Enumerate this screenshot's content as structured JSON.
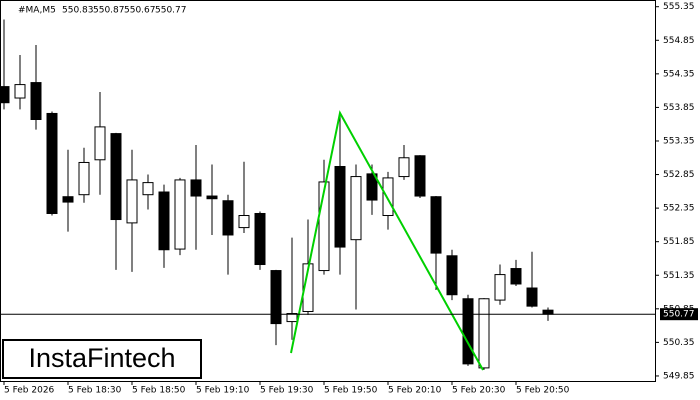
{
  "chart_data": {
    "type": "candlestick",
    "symbol": "#MA,M5",
    "categories": [
      "5 Feb 2026",
      null,
      null,
      null,
      "5 Feb 18:30",
      null,
      null,
      null,
      "5 Feb 18:50",
      null,
      null,
      null,
      "5 Feb 19:10",
      null,
      null,
      null,
      "5 Feb 19:30",
      null,
      null,
      null,
      "5 Feb 19:50",
      null,
      null,
      null,
      "5 Feb 20:10",
      null,
      null,
      null,
      "5 Feb 20:30",
      null,
      null,
      null,
      "5 Feb 20:50",
      null,
      null
    ],
    "open": [
      554.16,
      553.99,
      554.22,
      553.76,
      552.52,
      552.55,
      553.07,
      553.46,
      552.13,
      552.55,
      552.59,
      551.74,
      552.77,
      552.53,
      552.46,
      552.06,
      552.27,
      551.42,
      550.66,
      550.81,
      551.42,
      552.97,
      551.88,
      552.86,
      552.24,
      552.82,
      553.13,
      552.52,
      551.64,
      551.0,
      549.97,
      550.98,
      551.45,
      551.16,
      550.83
    ],
    "high": [
      555.16,
      554.63,
      554.78,
      553.79,
      553.22,
      553.25,
      554.08,
      553.47,
      553.22,
      552.85,
      552.7,
      552.8,
      553.29,
      553.0,
      552.55,
      553.04,
      552.3,
      551.43,
      551.91,
      552.18,
      553.07,
      553.77,
      553.0,
      553.0,
      552.89,
      553.29,
      553.14,
      552.53,
      551.73,
      551.06,
      551.01,
      551.51,
      551.58,
      551.7,
      550.87
    ],
    "low": [
      553.82,
      553.82,
      553.52,
      552.24,
      552.0,
      552.43,
      552.55,
      551.43,
      551.4,
      552.33,
      551.46,
      551.65,
      551.73,
      551.95,
      551.36,
      551.98,
      551.43,
      550.31,
      550.39,
      550.76,
      551.36,
      551.36,
      550.84,
      552.25,
      552.03,
      552.77,
      552.5,
      551.13,
      550.98,
      550.0,
      549.94,
      550.91,
      551.19,
      550.87,
      550.67
    ],
    "close": [
      553.92,
      554.19,
      553.67,
      552.27,
      552.44,
      553.03,
      553.56,
      552.18,
      552.77,
      552.73,
      551.73,
      552.77,
      552.53,
      552.49,
      551.95,
      552.24,
      551.51,
      550.63,
      550.78,
      551.52,
      552.74,
      551.77,
      552.82,
      552.47,
      552.8,
      553.1,
      552.53,
      551.68,
      551.06,
      550.03,
      551.0,
      551.36,
      551.22,
      550.89,
      550.77
    ],
    "up_color": "#ffffff",
    "down_color": "#000000",
    "ylim": [
      549.76,
      555.45
    ],
    "yticks": [
      549.85,
      550.35,
      550.85,
      551.35,
      551.85,
      552.35,
      552.85,
      553.35,
      553.85,
      554.35,
      554.85,
      555.35
    ],
    "watermark": "InstaFintech"
  }
}
